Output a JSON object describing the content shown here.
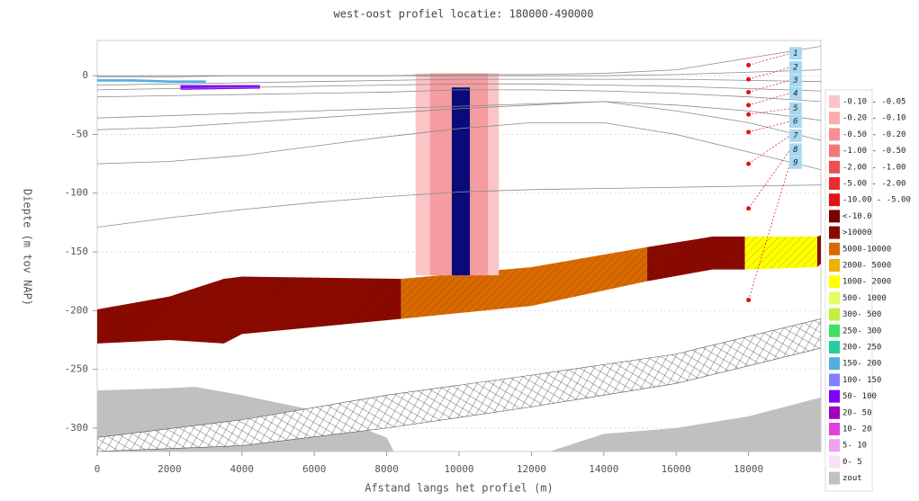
{
  "chart_data": {
    "type": "profile",
    "title": "west-oost profiel locatie: 180000-490000",
    "xlabel": "Afstand langs het profiel (m)",
    "ylabel": "Diepte (m tov NAP)",
    "xlim": [
      0,
      20000
    ],
    "ylim": [
      -320,
      30
    ],
    "xticks": [
      0,
      2000,
      4000,
      6000,
      8000,
      10000,
      12000,
      14000,
      16000,
      18000
    ],
    "yticks": [
      0,
      -50,
      -100,
      -150,
      -200,
      -250,
      -300
    ],
    "grid": true,
    "layer_lines": {
      "color": "#8c8c8c",
      "x": [
        0,
        2000,
        4000,
        6000,
        8000,
        10000,
        12000,
        14000,
        16000,
        18000,
        20000
      ],
      "lines": [
        [
          0,
          0,
          0,
          0,
          0,
          1,
          1,
          2,
          5,
          15,
          25
        ],
        [
          -1,
          -1,
          0,
          0,
          0,
          0,
          0,
          0,
          1,
          3,
          5
        ],
        [
          -8,
          -7,
          -6,
          -5,
          -4,
          -3,
          -3,
          -3,
          -3,
          -4,
          -5
        ],
        [
          -12,
          -11,
          -10,
          -9,
          -8,
          -7,
          -7,
          -8,
          -9,
          -11,
          -13
        ],
        [
          -18,
          -17,
          -16,
          -15,
          -14,
          -12,
          -12,
          -13,
          -15,
          -18,
          -22
        ],
        [
          -36,
          -34,
          -32,
          -30,
          -28,
          -26,
          -24,
          -22,
          -25,
          -30,
          -38
        ],
        [
          -46,
          -44,
          -40,
          -36,
          -32,
          -28,
          -25,
          -22,
          -30,
          -40,
          -55
        ],
        [
          -75,
          -73,
          -68,
          -60,
          -52,
          -45,
          -40,
          -40,
          -50,
          -65,
          -80
        ],
        [
          -129,
          -121,
          -114,
          -108,
          -103,
          -99,
          -97,
          -96,
          -95,
          -94,
          -93
        ]
      ]
    },
    "bands": [
      {
        "color": "#c0c0c0",
        "pattern": "none",
        "x": [
          0,
          2000,
          2700,
          4000,
          6000,
          8000,
          8200
        ],
        "top": [
          -268,
          -266,
          -265,
          -272,
          -285,
          -308,
          -320
        ],
        "bottom": [
          -320,
          -320,
          -320,
          -320,
          -320,
          -320,
          -320
        ]
      },
      {
        "color": "#c0c0c0",
        "pattern": "none",
        "x": [
          12500,
          14000,
          16000,
          18000,
          20000
        ],
        "top": [
          -320,
          -305,
          -300,
          -290,
          -274
        ],
        "bottom": [
          -320,
          -320,
          -320,
          -320,
          -320
        ]
      },
      {
        "color": "#ffffff",
        "pattern": "crosshatch",
        "x": [
          0,
          4000,
          8000,
          12000,
          16000,
          20000
        ],
        "top": [
          -308,
          -293,
          -272,
          -255,
          -237,
          -207
        ],
        "bottom": [
          -320,
          -315,
          -300,
          -282,
          -262,
          -232
        ]
      },
      {
        "color": "#8b0a00",
        "pattern": "diagonal",
        "x": [
          0,
          2000,
          3500,
          4000,
          8400
        ],
        "top": [
          -199,
          -188,
          -173,
          -171,
          -173
        ],
        "bottom": [
          -228,
          -225,
          -228,
          -220,
          -207
        ]
      },
      {
        "color": "#d96a00",
        "pattern": "diagonal",
        "x": [
          8400,
          12000,
          15200
        ],
        "top": [
          -173,
          -163,
          -146
        ],
        "bottom": [
          -207,
          -196,
          -175
        ]
      },
      {
        "color": "#8b0a00",
        "pattern": "diagonal",
        "x": [
          15200,
          17000,
          17900
        ],
        "top": [
          -146,
          -137,
          -137
        ],
        "bottom": [
          -175,
          -165,
          -165
        ]
      },
      {
        "color": "#ffff00",
        "pattern": "diagonal",
        "x": [
          17900,
          19900
        ],
        "top": [
          -137,
          -137
        ],
        "bottom": [
          -165,
          -163
        ]
      },
      {
        "color": "#8b0a00",
        "pattern": "diagonal",
        "x": [
          19900,
          20000
        ],
        "top": [
          -137,
          -136
        ],
        "bottom": [
          -163,
          -160
        ]
      },
      {
        "color": "#50b0e0",
        "pattern": "none",
        "x": [
          0,
          1000,
          2000,
          3000
        ],
        "top": [
          -3,
          -3,
          -4,
          -4
        ],
        "bottom": [
          -5,
          -5,
          -6,
          -6
        ]
      },
      {
        "color": "#8000ff",
        "pattern": "none",
        "x": [
          2300,
          4500
        ],
        "top": [
          -8,
          -8
        ],
        "bottom": [
          -12,
          -11
        ]
      },
      {
        "color": "#fbc4c6",
        "pattern": "none",
        "x": [
          8800,
          11100
        ],
        "top": [
          2,
          2
        ],
        "bottom": [
          -170,
          -170
        ]
      },
      {
        "color": "#f59ca0",
        "pattern": "none",
        "x": [
          9200,
          10800
        ],
        "top": [
          2,
          2
        ],
        "bottom": [
          -170,
          -170
        ]
      },
      {
        "color": "#0a0a7a",
        "pattern": "none",
        "x": [
          9800,
          10300
        ],
        "top": [
          -10,
          -10
        ],
        "bottom": [
          -170,
          -170
        ]
      }
    ],
    "points": {
      "color": "#e51015",
      "x": 18000,
      "values": [
        9,
        -3,
        -14,
        -25,
        -33,
        -48,
        -75,
        -113,
        -191
      ],
      "label_x": 19300,
      "label_color": "#a8d8f0",
      "labels": [
        "1",
        "2",
        "3",
        "4",
        "5",
        "6",
        "7",
        "8",
        "9"
      ],
      "label_values": [
        19,
        7,
        -4,
        -15,
        -28,
        -39,
        -51,
        -63,
        -74
      ]
    },
    "legend": [
      {
        "label": "-0.10 - -0.05",
        "color": "#fbc4c6"
      },
      {
        "label": "-0.20 - -0.10",
        "color": "#f8acae"
      },
      {
        "label": "-0.50 - -0.20",
        "color": "#f59194"
      },
      {
        "label": "-1.00 - -0.50",
        "color": "#f2777b"
      },
      {
        "label": "-2.00 - -1.00",
        "color": "#ee4d52"
      },
      {
        "label": "-5.00 - -2.00",
        "color": "#ea2a2f"
      },
      {
        "label": "-10.00 - -5.00",
        "color": "#e51015"
      },
      {
        "label": "<-10.0",
        "color": "#7a0000"
      },
      {
        "label": ">10000",
        "color": "#8b0a00"
      },
      {
        "label": "5000-10000",
        "color": "#d96a00"
      },
      {
        "label": "2000- 5000",
        "color": "#f0b000"
      },
      {
        "label": "1000- 2000",
        "color": "#ffff00"
      },
      {
        "label": "500- 1000",
        "color": "#e0ff60"
      },
      {
        "label": "300- 500",
        "color": "#c0f040"
      },
      {
        "label": "250- 300",
        "color": "#40e060"
      },
      {
        "label": "200- 250",
        "color": "#20d0a0"
      },
      {
        "label": "150- 200",
        "color": "#50b0e0"
      },
      {
        "label": "100- 150",
        "color": "#8080ff"
      },
      {
        "label": "50- 100",
        "color": "#8000ff"
      },
      {
        "label": "20- 50",
        "color": "#a000c0"
      },
      {
        "label": "10- 20",
        "color": "#e040e0"
      },
      {
        "label": "5- 10",
        "color": "#f0a0f0"
      },
      {
        "label": "0- 5",
        "color": "#f8e0f8"
      },
      {
        "label": "zout",
        "color": "#c0c0c0"
      }
    ]
  }
}
